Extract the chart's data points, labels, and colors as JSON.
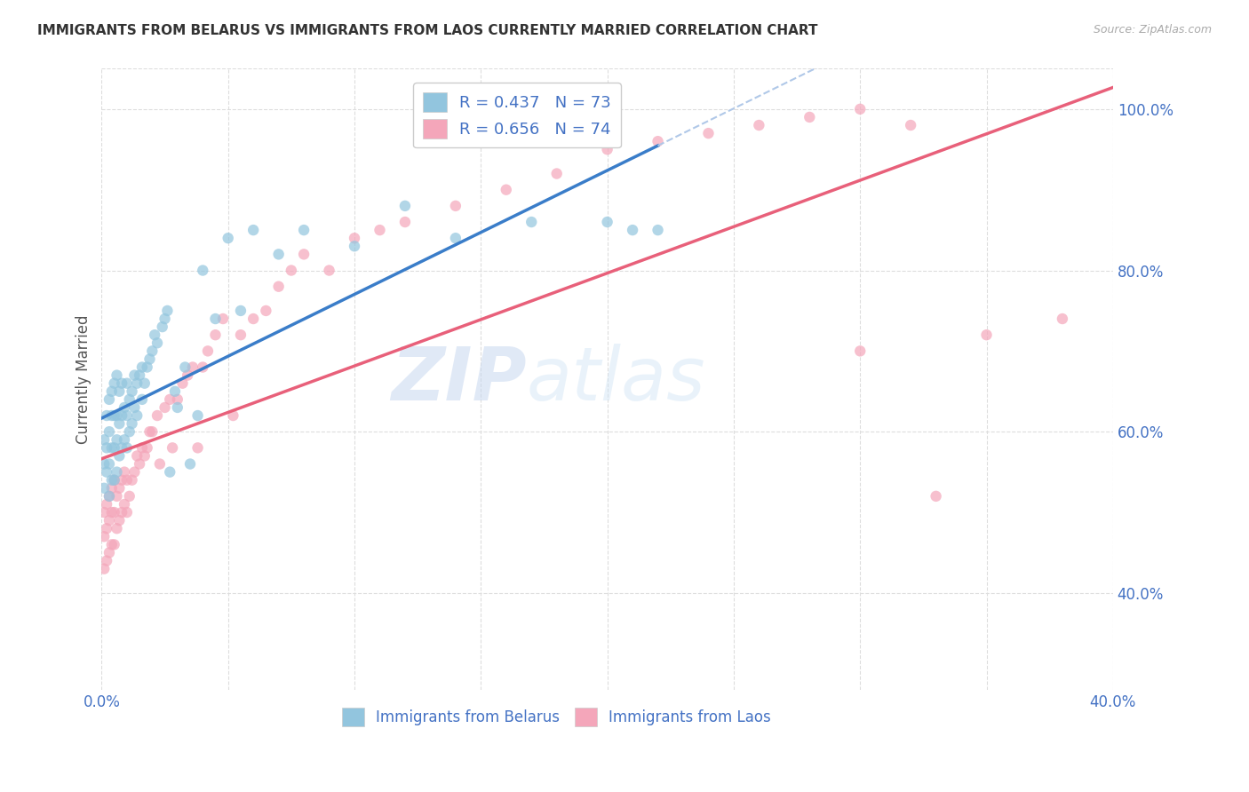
{
  "title": "IMMIGRANTS FROM BELARUS VS IMMIGRANTS FROM LAOS CURRENTLY MARRIED CORRELATION CHART",
  "source": "Source: ZipAtlas.com",
  "ylabel": "Currently Married",
  "xlim": [
    0.0,
    0.4
  ],
  "ylim": [
    0.28,
    1.05
  ],
  "x_tick_positions": [
    0.0,
    0.05,
    0.1,
    0.15,
    0.2,
    0.25,
    0.3,
    0.35,
    0.4
  ],
  "x_tick_show": [
    0.0,
    0.4
  ],
  "x_tick_labels_show": [
    "0.0%",
    "40.0%"
  ],
  "y_ticks_right": [
    0.4,
    0.6,
    0.8,
    1.0
  ],
  "y_tick_labels_right": [
    "40.0%",
    "60.0%",
    "80.0%",
    "100.0%"
  ],
  "belarus_R": 0.437,
  "belarus_N": 73,
  "laos_R": 0.656,
  "laos_N": 74,
  "belarus_color": "#92c5de",
  "laos_color": "#f4a6ba",
  "trendline_belarus_color": "#3a7dc9",
  "trendline_laos_color": "#e8607a",
  "trendline_1_1_color": "#b0c8e8",
  "watermark_zip": "ZIP",
  "watermark_atlas": "atlas",
  "background_color": "#ffffff",
  "belarus_x": [
    0.001,
    0.001,
    0.001,
    0.002,
    0.002,
    0.002,
    0.003,
    0.003,
    0.003,
    0.003,
    0.004,
    0.004,
    0.004,
    0.004,
    0.005,
    0.005,
    0.005,
    0.005,
    0.006,
    0.006,
    0.006,
    0.006,
    0.007,
    0.007,
    0.007,
    0.008,
    0.008,
    0.008,
    0.009,
    0.009,
    0.01,
    0.01,
    0.01,
    0.011,
    0.011,
    0.012,
    0.012,
    0.013,
    0.013,
    0.014,
    0.014,
    0.015,
    0.016,
    0.016,
    0.017,
    0.018,
    0.019,
    0.02,
    0.021,
    0.022,
    0.024,
    0.025,
    0.026,
    0.027,
    0.029,
    0.03,
    0.033,
    0.035,
    0.038,
    0.04,
    0.045,
    0.05,
    0.055,
    0.06,
    0.07,
    0.08,
    0.1,
    0.12,
    0.14,
    0.17,
    0.2,
    0.21,
    0.22
  ],
  "belarus_y": [
    0.53,
    0.56,
    0.59,
    0.55,
    0.58,
    0.62,
    0.52,
    0.56,
    0.6,
    0.64,
    0.54,
    0.58,
    0.62,
    0.65,
    0.54,
    0.58,
    0.62,
    0.66,
    0.55,
    0.59,
    0.62,
    0.67,
    0.57,
    0.61,
    0.65,
    0.58,
    0.62,
    0.66,
    0.59,
    0.63,
    0.58,
    0.62,
    0.66,
    0.6,
    0.64,
    0.61,
    0.65,
    0.63,
    0.67,
    0.62,
    0.66,
    0.67,
    0.64,
    0.68,
    0.66,
    0.68,
    0.69,
    0.7,
    0.72,
    0.71,
    0.73,
    0.74,
    0.75,
    0.55,
    0.65,
    0.63,
    0.68,
    0.56,
    0.62,
    0.8,
    0.74,
    0.84,
    0.75,
    0.85,
    0.82,
    0.85,
    0.83,
    0.88,
    0.84,
    0.86,
    0.86,
    0.85,
    0.85
  ],
  "laos_x": [
    0.001,
    0.001,
    0.001,
    0.002,
    0.002,
    0.002,
    0.003,
    0.003,
    0.003,
    0.004,
    0.004,
    0.004,
    0.005,
    0.005,
    0.005,
    0.006,
    0.006,
    0.007,
    0.007,
    0.008,
    0.008,
    0.009,
    0.009,
    0.01,
    0.01,
    0.011,
    0.012,
    0.013,
    0.014,
    0.015,
    0.016,
    0.017,
    0.018,
    0.019,
    0.02,
    0.022,
    0.023,
    0.025,
    0.027,
    0.028,
    0.03,
    0.032,
    0.034,
    0.036,
    0.038,
    0.04,
    0.042,
    0.045,
    0.048,
    0.052,
    0.055,
    0.06,
    0.065,
    0.07,
    0.075,
    0.08,
    0.09,
    0.1,
    0.11,
    0.12,
    0.14,
    0.16,
    0.18,
    0.2,
    0.22,
    0.24,
    0.26,
    0.28,
    0.3,
    0.32,
    0.33,
    0.35,
    0.38,
    0.3
  ],
  "laos_y": [
    0.43,
    0.47,
    0.5,
    0.44,
    0.48,
    0.51,
    0.45,
    0.49,
    0.52,
    0.46,
    0.5,
    0.53,
    0.46,
    0.5,
    0.54,
    0.48,
    0.52,
    0.49,
    0.53,
    0.5,
    0.54,
    0.51,
    0.55,
    0.5,
    0.54,
    0.52,
    0.54,
    0.55,
    0.57,
    0.56,
    0.58,
    0.57,
    0.58,
    0.6,
    0.6,
    0.62,
    0.56,
    0.63,
    0.64,
    0.58,
    0.64,
    0.66,
    0.67,
    0.68,
    0.58,
    0.68,
    0.7,
    0.72,
    0.74,
    0.62,
    0.72,
    0.74,
    0.75,
    0.78,
    0.8,
    0.82,
    0.8,
    0.84,
    0.85,
    0.86,
    0.88,
    0.9,
    0.92,
    0.95,
    0.96,
    0.97,
    0.98,
    0.99,
    1.0,
    0.98,
    0.52,
    0.72,
    0.74,
    0.7
  ]
}
